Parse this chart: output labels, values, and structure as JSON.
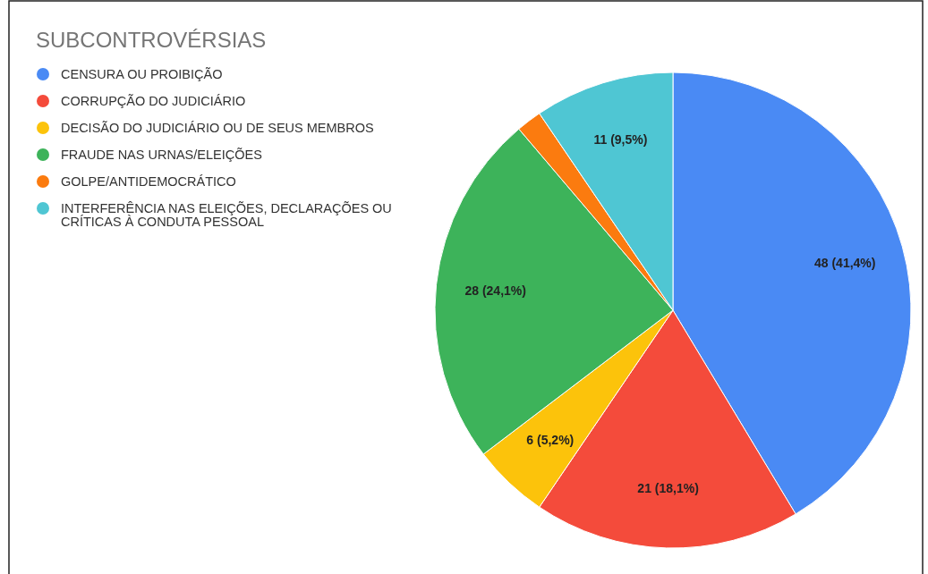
{
  "chart_data": {
    "type": "pie",
    "title": "SUBCONTROVÉRSIAS",
    "categories": [
      "CENSURA OU PROIBIÇÃO",
      "CORRUPÇÃO DO JUDICIÁRIO",
      "DECISÃO DO JUDICIÁRIO OU DE SEUS MEMBROS",
      "FRAUDE NAS URNAS/ELEIÇÕES",
      "GOLPE/ANTIDEMOCRÁTICO",
      "INTERFERÊNCIA NAS ELEIÇÕES, DECLARAÇÕES OU CRÍTICAS À CONDUTA PESSOAL"
    ],
    "values": [
      48,
      21,
      6,
      28,
      2,
      11
    ],
    "value_labels": [
      "48 (41,4%)",
      "21 (18,1%)",
      "6 (5,2%)",
      "28 (24,1%)",
      null,
      "11 (9,5%)"
    ],
    "colors": [
      "#4a8af4",
      "#f44b3b",
      "#fcc30b",
      "#3db35a",
      "#fb7b0f",
      "#4fc6d3"
    ],
    "legend": "top left"
  }
}
